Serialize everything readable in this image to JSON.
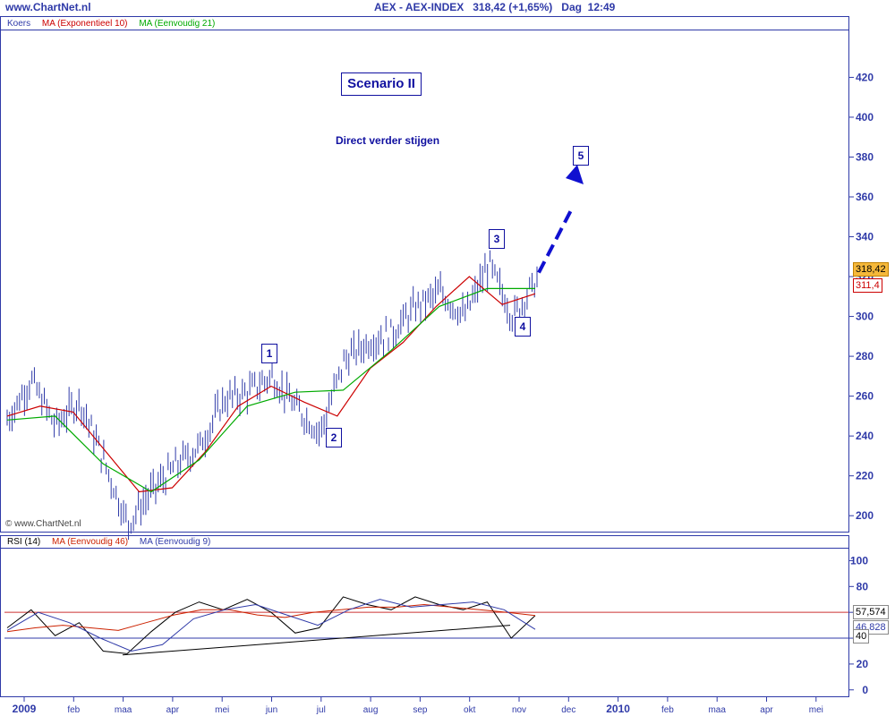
{
  "header": {
    "site": "www.ChartNet.nl",
    "title": "AEX - AEX-INDEX   318,42 (+1,65%)   Dag  12:49"
  },
  "main_legend": {
    "koers": "Koers",
    "ma1": "MA (Exponentieel 10)",
    "ma2": "MA (Eenvoudig 21)",
    "colors": {
      "koers": "#2f3aa8",
      "ma1": "#cc0000",
      "ma2": "#00aa00"
    }
  },
  "rsi_legend": {
    "rsi": "RSI (14)",
    "ma1": "MA (Eenvoudig 46)",
    "ma2": "MA (Eenvoudig 9)"
  },
  "annotations": {
    "scenario": "Scenario II",
    "subtitle": "Direct verder stijgen",
    "waves": [
      "1",
      "2",
      "3",
      "4",
      "5"
    ]
  },
  "copyright": "© www.ChartNet.nl",
  "price_tags": {
    "last": "318,42",
    "ma": "311,4"
  },
  "rsi_tags": {
    "rsi": "57,574",
    "ma": "46,828",
    "level": "40"
  },
  "chart_data": [
    {
      "type": "line",
      "title": "AEX - AEX-INDEX",
      "y_ticks": [
        "420",
        "400",
        "380",
        "360",
        "340",
        "320",
        "300",
        "280",
        "260",
        "240",
        "220",
        "200"
      ],
      "ylim": [
        192,
        444
      ],
      "x_ticks": [
        "2009",
        "feb",
        "maa",
        "apr",
        "mei",
        "jun",
        "jul",
        "aug",
        "sep",
        "okt",
        "nov",
        "dec",
        "2010",
        "feb",
        "maa",
        "apr",
        "mei"
      ],
      "series": [
        {
          "name": "Koers",
          "x": [
            "jan",
            "jan",
            "feb",
            "feb",
            "maa",
            "maa",
            "apr",
            "apr",
            "mei",
            "mei",
            "jun",
            "jun",
            "jul",
            "jul",
            "aug",
            "aug",
            "sep",
            "sep",
            "okt",
            "okt",
            "okt",
            "nov",
            "nov"
          ],
          "values": [
            248,
            268,
            245,
            258,
            228,
            196,
            212,
            225,
            235,
            258,
            262,
            270,
            254,
            242,
            278,
            287,
            292,
            305,
            312,
            300,
            326,
            300,
            318.42
          ]
        },
        {
          "name": "MA (Exponentieel 10)",
          "x": [
            "jan",
            "feb",
            "feb",
            "maa",
            "maa",
            "apr",
            "mei",
            "jun",
            "jun",
            "jul",
            "jul",
            "aug",
            "sep",
            "okt",
            "okt",
            "nov",
            "nov"
          ],
          "values": [
            250,
            255,
            252,
            232,
            212,
            214,
            232,
            255,
            265,
            257,
            250,
            274,
            287,
            305,
            320,
            306,
            311.4
          ]
        },
        {
          "name": "MA (Eenvoudig 21)",
          "x": [
            "jan",
            "feb",
            "maa",
            "apr",
            "mei",
            "jun",
            "jul",
            "aug",
            "sep",
            "okt",
            "nov",
            "nov"
          ],
          "values": [
            248,
            250,
            226,
            212,
            228,
            255,
            262,
            263,
            283,
            305,
            314,
            314
          ]
        }
      ],
      "wave_labels": [
        {
          "label": "1",
          "x": "jun",
          "y": 270
        },
        {
          "label": "2",
          "x": "jul",
          "y": 242
        },
        {
          "label": "3",
          "x": "okt",
          "y": 327
        },
        {
          "label": "4",
          "x": "nov",
          "y": 298
        },
        {
          "label": "5",
          "x": "nov",
          "y": 365
        }
      ]
    },
    {
      "type": "line",
      "title": "RSI (14)",
      "y_ticks": [
        "100",
        "80",
        "60",
        "40",
        "20",
        "0"
      ],
      "ylim": [
        -5,
        110
      ],
      "reference_lines": [
        40,
        60
      ],
      "series": [
        {
          "name": "RSI (14)",
          "values": [
            48,
            62,
            42,
            52,
            30,
            28,
            45,
            60,
            68,
            62,
            70,
            60,
            44,
            48,
            72,
            66,
            62,
            72,
            66,
            62,
            68,
            40,
            57.574
          ]
        },
        {
          "name": "MA (Eenvoudig 46)",
          "values": [
            45,
            48,
            50,
            48,
            46,
            52,
            58,
            62,
            62,
            58,
            56,
            60,
            62,
            64,
            64,
            66,
            64,
            62,
            60,
            57.574
          ]
        },
        {
          "name": "MA (Eenvoudig 9)",
          "values": [
            46,
            60,
            52,
            40,
            30,
            35,
            55,
            62,
            66,
            58,
            50,
            62,
            70,
            64,
            66,
            68,
            62,
            46.828
          ]
        }
      ],
      "trendline": "maa → nov (support)"
    }
  ]
}
